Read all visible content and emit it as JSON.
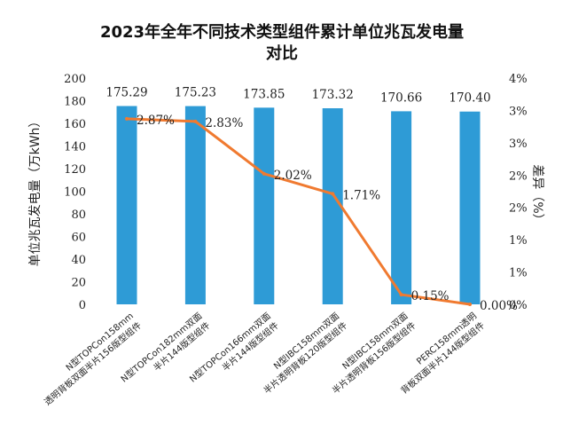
{
  "chart_data": {
    "type": "bar+line",
    "title_line1": "2023年全年不同技术类型组件累计单位兆瓦发电量",
    "title_line2": "对比",
    "categories": [
      [
        "N型TOPCon158mm",
        "透明背板双面半片156版型组件"
      ],
      [
        "N型TOPCon182mm双面",
        "半片144版型组件"
      ],
      [
        "N型TOPCon166mm双面",
        "半片144版型组件"
      ],
      [
        "N型IBC158mm双面",
        "半片透明背板120版型组件"
      ],
      [
        "N型IBC158mm双面",
        "半片透明背板156版型组件"
      ],
      [
        "PERC158mm透明",
        "背板双面半片144版型组件"
      ]
    ],
    "series": [
      {
        "name": "单位兆瓦发电量",
        "type": "bar",
        "axis": "left",
        "color": "#2e9bd6",
        "values": [
          175.29,
          175.23,
          173.85,
          173.32,
          170.66,
          170.4
        ],
        "labels": [
          "175.29",
          "175.23",
          "173.85",
          "173.32",
          "170.66",
          "170.40"
        ]
      },
      {
        "name": "差异",
        "type": "line",
        "axis": "right",
        "color": "#f07a30",
        "values": [
          2.87,
          2.83,
          2.02,
          1.71,
          0.15,
          0.0
        ],
        "labels": [
          "2.87%",
          "2.83%",
          "2.02%",
          "1.71%",
          "0.15%",
          "0.00%"
        ]
      }
    ],
    "ylabel": "单位兆瓦发电量（万kWh）",
    "ylim": [
      0,
      200
    ],
    "yticks": [
      "0",
      "20",
      "40",
      "60",
      "80",
      "100",
      "120",
      "140",
      "160",
      "180",
      "200"
    ],
    "y2label": "差异（%）",
    "y2lim": [
      0,
      3.5
    ],
    "y2ticks": [
      "0%",
      "1%",
      "1%",
      "2%",
      "2%",
      "3%",
      "3%",
      "4%"
    ]
  }
}
